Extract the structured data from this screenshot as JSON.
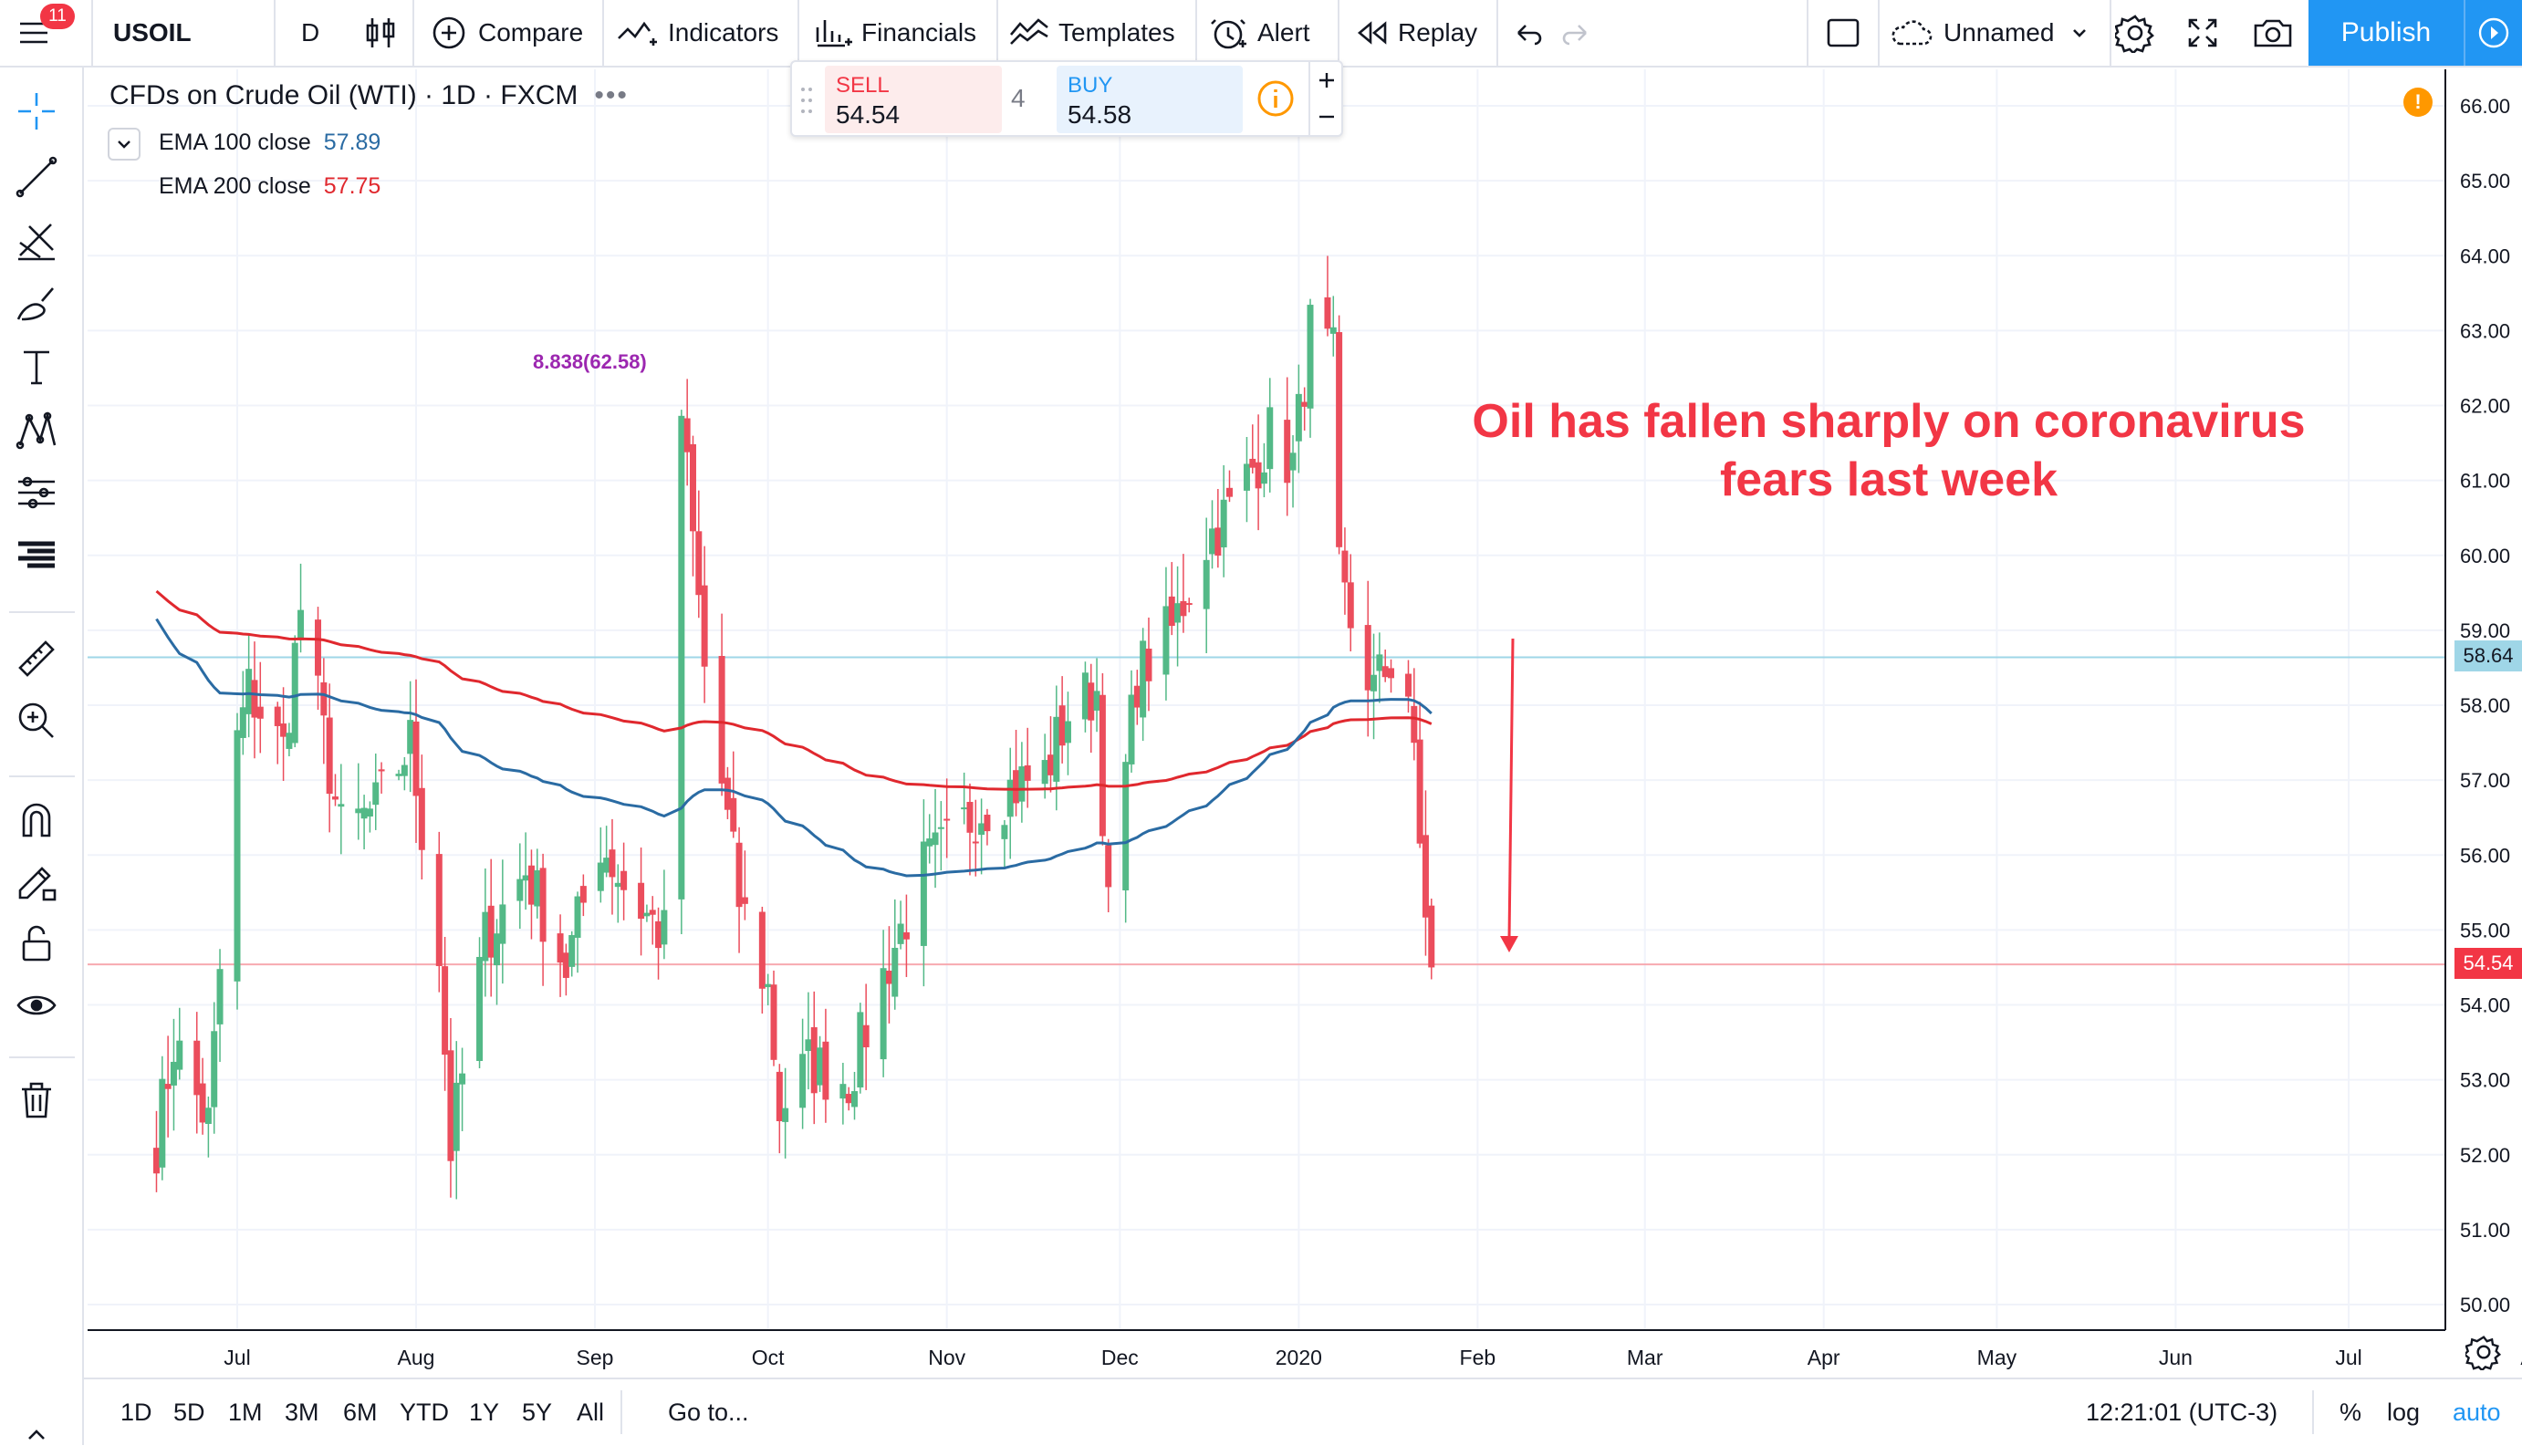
{
  "top_toolbar": {
    "notification_count": "11",
    "symbol": "USOIL",
    "interval": "D",
    "compare_label": "Compare",
    "indicators_label": "Indicators",
    "financials_label": "Financials",
    "templates_label": "Templates",
    "alert_label": "Alert",
    "replay_label": "Replay",
    "layout_name": "Unnamed",
    "publish_label": "Publish"
  },
  "legend": {
    "title": "CFDs on Crude Oil (WTI) · 1D · FXCM",
    "ema100_label": "EMA 100 close",
    "ema100_value": "57.89",
    "ema200_label": "EMA 200 close",
    "ema200_value": "57.75"
  },
  "trade_panel": {
    "sell_label": "SELL",
    "sell_price": "54.54",
    "spread": "4",
    "buy_label": "BUY",
    "buy_price": "54.58"
  },
  "annotation": {
    "line1": "Oil has fallen sharply on coronavirus",
    "line2": "fears last week"
  },
  "overlap_label": "8.838(62.58)",
  "price_axis": {
    "ticks": [
      "66.00",
      "65.00",
      "64.00",
      "63.00",
      "62.00",
      "61.00",
      "60.00",
      "59.00",
      "58.00",
      "57.00",
      "56.00",
      "55.00",
      "54.00",
      "53.00",
      "52.00",
      "51.00",
      "50.00"
    ],
    "ema_line_label": "58.64",
    "last_price_label": "54.54"
  },
  "time_axis": {
    "ticks": [
      "Jul",
      "Aug",
      "Sep",
      "Oct",
      "Nov",
      "Dec",
      "2020",
      "Feb",
      "Mar",
      "Apr",
      "May",
      "Jun",
      "Jul",
      "A"
    ]
  },
  "bottom_bar": {
    "ranges": [
      "1D",
      "5D",
      "1M",
      "3M",
      "6M",
      "YTD",
      "1Y",
      "5Y",
      "All"
    ],
    "goto_label": "Go to...",
    "clock": "12:21:01 (UTC-3)",
    "percent_label": "%",
    "log_label": "log",
    "auto_label": "auto"
  },
  "colors": {
    "up": "#26a69a",
    "up_candle": "#53b987",
    "down_candle": "#eb4d5c",
    "ema100": "#2a6ba3",
    "ema200": "#e0282e",
    "accent": "#2196f3",
    "annotation": "#f23645"
  },
  "chart_data": {
    "type": "candlestick",
    "title": "CFDs on Crude Oil (WTI) · 1D · FXCM",
    "ylim": [
      49.6,
      66.4
    ],
    "x_ticks": [
      "Jul",
      "Aug",
      "Sep",
      "Oct",
      "Nov",
      "Dec",
      "2020",
      "Feb",
      "Mar",
      "Apr",
      "May",
      "Jun",
      "Jul"
    ],
    "close_anchors": [
      [
        "2019-06-17",
        52.2
      ],
      [
        "2019-06-20",
        53.5
      ],
      [
        "2019-06-26",
        52.4
      ],
      [
        "2019-07-01",
        57.5
      ],
      [
        "2019-07-03",
        58.2
      ],
      [
        "2019-07-09",
        57.4
      ],
      [
        "2019-07-12",
        59.3
      ],
      [
        "2019-07-19",
        56.3
      ],
      [
        "2019-07-25",
        56.6
      ],
      [
        "2019-07-31",
        57.5
      ],
      [
        "2019-08-05",
        54.7
      ],
      [
        "2019-08-07",
        52.1
      ],
      [
        "2019-08-13",
        54.9
      ],
      [
        "2019-08-20",
        55.8
      ],
      [
        "2019-08-27",
        54.5
      ],
      [
        "2019-09-02",
        56.2
      ],
      [
        "2019-09-06",
        55.6
      ],
      [
        "2019-09-13",
        54.9
      ],
      [
        "2019-09-16",
        61.9
      ],
      [
        "2019-09-20",
        58.5
      ],
      [
        "2019-09-26",
        55.4
      ],
      [
        "2019-10-01",
        54.2
      ],
      [
        "2019-10-03",
        52.6
      ],
      [
        "2019-10-08",
        53.2
      ],
      [
        "2019-10-15",
        53.0
      ],
      [
        "2019-10-22",
        54.6
      ],
      [
        "2019-10-28",
        55.8
      ],
      [
        "2019-11-01",
        56.1
      ],
      [
        "2019-11-06",
        56.6
      ],
      [
        "2019-11-12",
        56.9
      ],
      [
        "2019-11-18",
        57.1
      ],
      [
        "2019-11-22",
        57.9
      ],
      [
        "2019-11-27",
        58.2
      ],
      [
        "2019-11-29",
        55.2
      ],
      [
        "2019-12-04",
        58.4
      ],
      [
        "2019-12-10",
        59.0
      ],
      [
        "2019-12-16",
        60.2
      ],
      [
        "2019-12-20",
        60.6
      ],
      [
        "2019-12-27",
        61.6
      ],
      [
        "2019-12-31",
        61.2
      ],
      [
        "2020-01-03",
        63.0
      ],
      [
        "2020-01-07",
        62.6
      ],
      [
        "2020-01-08",
        59.7
      ],
      [
        "2020-01-10",
        59.1
      ],
      [
        "2020-01-14",
        58.2
      ],
      [
        "2020-01-17",
        58.6
      ],
      [
        "2020-01-20",
        58.2
      ],
      [
        "2020-01-22",
        56.1
      ],
      [
        "2020-01-24",
        54.5
      ]
    ],
    "series": [
      {
        "name": "EMA 100 close",
        "last": 57.89
      },
      {
        "name": "EMA 200 close",
        "last": 57.75
      }
    ],
    "horizontal_lines": [
      58.64,
      54.54
    ],
    "last_price": 54.54
  }
}
